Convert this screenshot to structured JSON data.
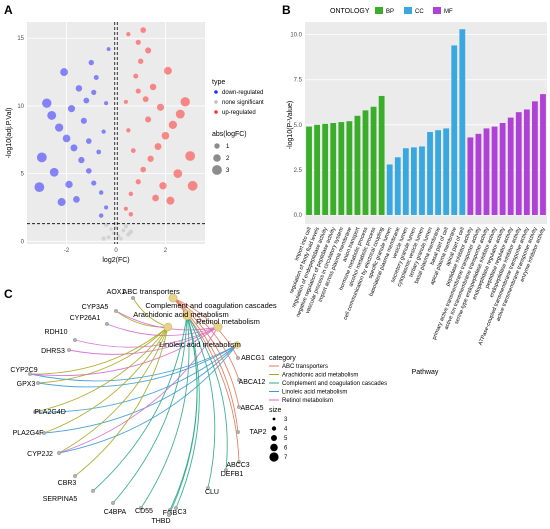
{
  "panels": {
    "a": "A",
    "b": "B",
    "c": "C"
  },
  "chart_data": [
    {
      "type": "scatter",
      "panel": "A",
      "xlabel": "log2(FC)",
      "ylabel": "-log10(adj.P.Val)",
      "xlim": [
        -3.6,
        3.6
      ],
      "ylim": [
        -0.2,
        16.2
      ],
      "xticks": [
        -2,
        0,
        2
      ],
      "xtick_labels": [
        "-2",
        "0",
        "2"
      ],
      "yticks": [
        0,
        5,
        10,
        15
      ],
      "ytick_labels": [
        "0",
        "5",
        "10",
        "15"
      ],
      "hline": 1.3,
      "vlines": [
        -0.05,
        0.05
      ],
      "grid": true,
      "legend_type_title": "type",
      "legend_type": [
        {
          "label": "down-regulated",
          "color": "#2b2bff"
        },
        {
          "label": "none significant",
          "color": "#bfbfbf"
        },
        {
          "label": "up-regulated",
          "color": "#ff3333"
        }
      ],
      "legend_size_title": "abs(logFC)",
      "legend_size": [
        {
          "label": "1",
          "v": 1
        },
        {
          "label": "2",
          "v": 2
        },
        {
          "label": "3",
          "v": 3
        }
      ],
      "series": [
        {
          "name": "down-regulated",
          "color": "#2b2bff",
          "points": [
            [
              -0.4,
              2.5
            ],
            [
              -0.6,
              3.6
            ],
            [
              -0.9,
              4.3
            ],
            [
              -1.1,
              5.2
            ],
            [
              -1.4,
              6.0
            ],
            [
              -1.7,
              6.9
            ],
            [
              -2.0,
              7.6
            ],
            [
              -2.3,
              8.4
            ],
            [
              -2.6,
              9.3
            ],
            [
              -1.2,
              10.4
            ],
            [
              -1.5,
              11.3
            ],
            [
              -0.8,
              12.1
            ],
            [
              -1.0,
              13.2
            ],
            [
              -2.8,
              10.2
            ],
            [
              -2.1,
              12.5
            ],
            [
              -0.3,
              14.2
            ],
            [
              -3.0,
              6.2
            ],
            [
              -2.5,
              5.1
            ],
            [
              -1.9,
              4.2
            ],
            [
              -0.7,
              6.6
            ],
            [
              -0.5,
              8.1
            ],
            [
              -1.3,
              8.9
            ],
            [
              -1.8,
              9.8
            ],
            [
              -0.9,
              11.0
            ],
            [
              -0.6,
              1.9
            ],
            [
              -1.6,
              3.1
            ],
            [
              -3.1,
              4.0
            ],
            [
              -2.2,
              2.9
            ],
            [
              -0.4,
              10.2
            ],
            [
              -1.1,
              7.4
            ]
          ]
        },
        {
          "name": "none significant",
          "color": "#bfbfbf",
          "points": [
            [
              -0.3,
              0.3
            ],
            [
              -0.1,
              0.6
            ],
            [
              0.1,
              0.4
            ],
            [
              0.3,
              0.8
            ],
            [
              -0.5,
              0.2
            ],
            [
              0.5,
              0.5
            ],
            [
              0.0,
              1.0
            ],
            [
              -0.2,
              0.9
            ],
            [
              0.2,
              0.2
            ],
            [
              0.4,
              1.1
            ],
            [
              -0.4,
              1.2
            ],
            [
              0.6,
              0.7
            ]
          ]
        },
        {
          "name": "up-regulated",
          "color": "#ff3333",
          "points": [
            [
              0.4,
              2.4
            ],
            [
              0.6,
              3.5
            ],
            [
              0.9,
              4.4
            ],
            [
              1.1,
              5.3
            ],
            [
              1.4,
              6.1
            ],
            [
              1.7,
              7.0
            ],
            [
              2.0,
              7.8
            ],
            [
              2.3,
              8.6
            ],
            [
              2.6,
              9.4
            ],
            [
              1.2,
              10.5
            ],
            [
              1.5,
              11.4
            ],
            [
              0.8,
              12.2
            ],
            [
              1.0,
              13.3
            ],
            [
              2.8,
              10.3
            ],
            [
              2.1,
              12.6
            ],
            [
              0.5,
              15.3
            ],
            [
              0.9,
              14.7
            ],
            [
              1.3,
              14.1
            ],
            [
              3.0,
              6.3
            ],
            [
              2.5,
              5.0
            ],
            [
              1.9,
              4.1
            ],
            [
              0.7,
              6.7
            ],
            [
              0.5,
              8.2
            ],
            [
              1.3,
              9.0
            ],
            [
              1.8,
              9.9
            ],
            [
              0.9,
              11.1
            ],
            [
              0.6,
              2.0
            ],
            [
              1.6,
              3.2
            ],
            [
              3.1,
              4.1
            ],
            [
              2.2,
              3.0
            ],
            [
              1.1,
              15.6
            ],
            [
              0.4,
              10.3
            ]
          ]
        }
      ]
    },
    {
      "type": "bar",
      "panel": "B",
      "legend_title": "ONTOLOGY",
      "legend": [
        {
          "label": "BP",
          "color": "#3aae2a"
        },
        {
          "label": "CC",
          "color": "#3aa8e0"
        },
        {
          "label": "MF",
          "color": "#b041d6"
        }
      ],
      "xlabel": "Pathway",
      "ylabel": "-log10(P-Value)",
      "ylim": [
        -0.5,
        10.7
      ],
      "yticks": [
        0,
        2.5,
        5,
        7.5,
        10
      ],
      "ytick_labels": [
        "0.0",
        "2.5",
        "5.0",
        "7.5",
        "10.0"
      ],
      "grid": true,
      "categories": [
        "import into cell",
        "regulation of body fluid levels",
        "regulation of endopeptidase activity",
        "negative regulation of peptidase activity",
        "vascular process in circulatory system",
        "import across plasma membrane",
        "anion transport",
        "hormone metabolic process",
        "alcohol metabolic process",
        "cell communication by electrical coupling",
        "specific granule lumen",
        "basolateral plasma membrane",
        "vesicle lumen",
        "secretory granule lumen",
        "cytoplasmic vesicle lumen",
        "tertiary granule lumen",
        "basal plasma membrane",
        "basal part of cell",
        "apical plasma membrane",
        "apical part of cell",
        "peptidase inhibitor activity",
        "primary active transmembrane transporter activity",
        "active ion transmembrane transporter activity",
        "serine-type endopeptidase inhibitor activity",
        "endopeptidase regulator activity",
        "peptidase regulator activity",
        "endopeptidase inhibitor activity",
        "ATPase-coupled transmembrane transporter activity",
        "active transmembrane transporter activity",
        "enzyme inhibitor activity"
      ],
      "values": [
        4.9,
        5.0,
        5.05,
        5.1,
        5.15,
        5.2,
        5.5,
        5.8,
        6.0,
        6.6,
        2.8,
        3.2,
        3.7,
        3.75,
        3.8,
        4.6,
        4.7,
        4.8,
        9.4,
        10.3,
        4.3,
        4.5,
        4.8,
        4.9,
        5.1,
        5.4,
        5.7,
        5.85,
        6.3,
        6.7
      ],
      "ontology": [
        "BP",
        "BP",
        "BP",
        "BP",
        "BP",
        "BP",
        "BP",
        "BP",
        "BP",
        "BP",
        "CC",
        "CC",
        "CC",
        "CC",
        "CC",
        "CC",
        "CC",
        "CC",
        "CC",
        "CC",
        "MF",
        "MF",
        "MF",
        "MF",
        "MF",
        "MF",
        "MF",
        "MF",
        "MF",
        "MF"
      ]
    },
    {
      "type": "network",
      "panel": "C",
      "legend_category_title": "category",
      "categories": [
        {
          "label": "ABC transporters",
          "color": "#e0785a"
        },
        {
          "label": "Arachidonic acid metabolism",
          "color": "#a8a820"
        },
        {
          "label": "Complement and coagulation cascades",
          "color": "#2aa88a"
        },
        {
          "label": "Linoleic acid metabolism",
          "color": "#3a9ad6"
        },
        {
          "label": "Retinol metabolism",
          "color": "#d66ad6"
        }
      ],
      "legend_size_title": "size",
      "legend_size": [
        "3",
        "4",
        "5",
        "6",
        "7"
      ],
      "pathway_labels": [
        "ABC transporters",
        "Complement and coagulation cascades",
        "Arachidonic acid metabolism",
        "Retinol metabolism",
        "Linoleic acid metabolism"
      ],
      "genes": [
        "AOX1",
        "CYP3A5",
        "CYP26A1",
        "RDH10",
        "DHRS3",
        "CYP2C9",
        "GPX3",
        "PLA2G4D",
        "PLA2G4F",
        "CYP2J2",
        "CBR3",
        "SERPINA5",
        "C4BPA",
        "CD55",
        "FGB",
        "THBD",
        "C3",
        "CLU",
        "DEFB1",
        "ABCC3",
        "TAP2",
        "ABCA5",
        "ABCA12",
        "ABCG1"
      ]
    }
  ]
}
